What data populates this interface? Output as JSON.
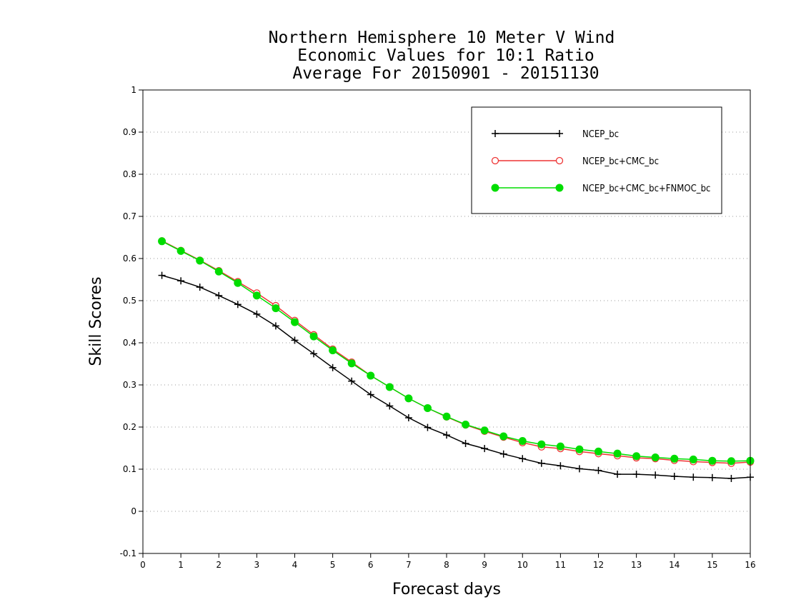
{
  "chart_data": {
    "type": "line",
    "title_lines": [
      "Northern Hemisphere 10 Meter V Wind",
      "Economic Values for 10:1 Ratio",
      "Average For 20150901 - 20151130"
    ],
    "xlabel": "Forecast days",
    "ylabel": "Skill Scores",
    "xlim": [
      0,
      16
    ],
    "ylim": [
      -0.1,
      1
    ],
    "xticks": [
      0,
      1,
      2,
      3,
      4,
      5,
      6,
      7,
      8,
      9,
      10,
      11,
      12,
      13,
      14,
      15,
      16
    ],
    "yticks": [
      -0.1,
      0,
      0.1,
      0.2,
      0.3,
      0.4,
      0.5,
      0.6,
      0.7,
      0.8,
      0.9,
      1
    ],
    "ytick_labels": [
      "-0.1",
      "0",
      "0.1",
      "0.2",
      "0.3",
      "0.4",
      "0.5",
      "0.6",
      "0.7",
      "0.8",
      "0.9",
      "1"
    ],
    "grid": "horizontal-dotted",
    "legend_position": "top-right",
    "x": [
      0.5,
      1,
      1.5,
      2,
      2.5,
      3,
      3.5,
      4,
      4.5,
      5,
      5.5,
      6,
      6.5,
      7,
      7.5,
      8,
      8.5,
      9,
      9.5,
      10,
      10.5,
      11,
      11.5,
      12,
      12.5,
      13,
      13.5,
      14,
      14.5,
      15,
      15.5,
      16
    ],
    "series": [
      {
        "name": "NCEP_bc",
        "color": "#000000",
        "marker": "plus",
        "values": [
          0.56,
          0.547,
          0.532,
          0.512,
          0.491,
          0.468,
          0.44,
          0.406,
          0.374,
          0.341,
          0.309,
          0.277,
          0.25,
          0.222,
          0.199,
          0.181,
          0.161,
          0.149,
          0.136,
          0.125,
          0.114,
          0.108,
          0.101,
          0.097,
          0.088,
          0.088,
          0.086,
          0.083,
          0.081,
          0.08,
          0.078,
          0.081
        ]
      },
      {
        "name": "NCEP_bc+CMC_bc",
        "color": "#ee3333",
        "marker": "open-circle",
        "values": [
          0.642,
          0.619,
          0.596,
          0.571,
          0.545,
          0.518,
          0.488,
          0.453,
          0.419,
          0.385,
          0.354,
          0.322,
          0.295,
          0.268,
          0.245,
          0.224,
          0.205,
          0.19,
          0.176,
          0.163,
          0.153,
          0.149,
          0.142,
          0.137,
          0.132,
          0.127,
          0.125,
          0.121,
          0.118,
          0.116,
          0.114,
          0.117
        ]
      },
      {
        "name": "NCEP_bc+CMC_bc+FNMOC_bc",
        "color": "#00dd00",
        "marker": "filled-circle",
        "values": [
          0.641,
          0.618,
          0.595,
          0.569,
          0.542,
          0.512,
          0.482,
          0.449,
          0.415,
          0.382,
          0.351,
          0.322,
          0.295,
          0.268,
          0.245,
          0.225,
          0.206,
          0.192,
          0.178,
          0.167,
          0.159,
          0.154,
          0.147,
          0.142,
          0.137,
          0.131,
          0.128,
          0.125,
          0.123,
          0.12,
          0.119,
          0.12
        ]
      }
    ]
  }
}
